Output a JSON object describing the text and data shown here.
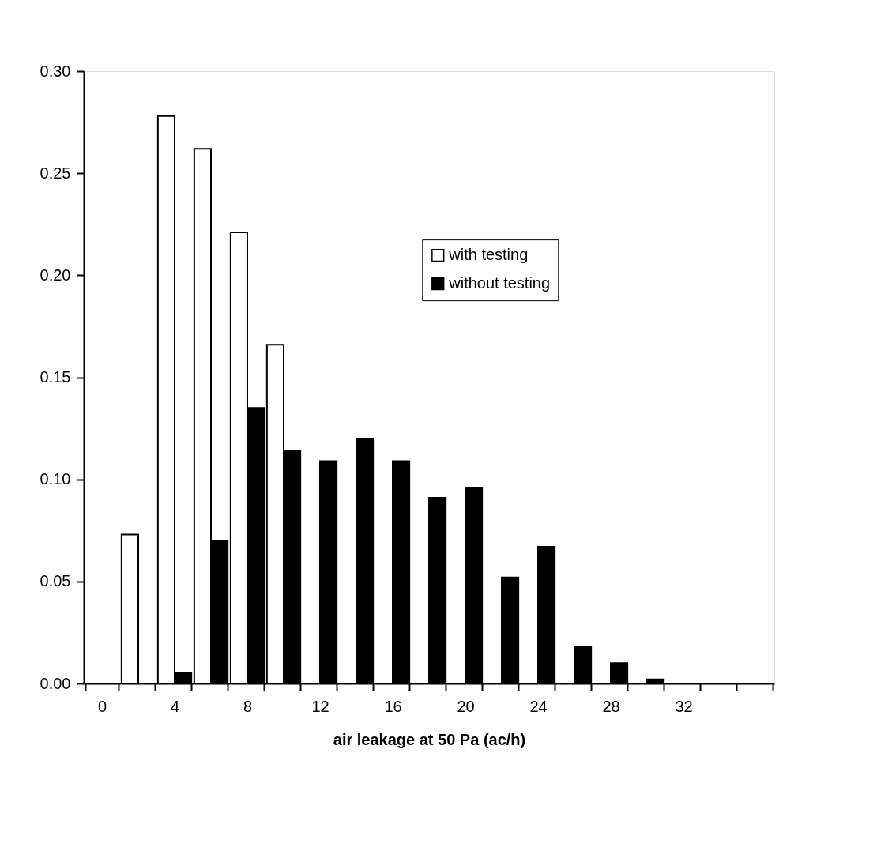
{
  "chart_data": {
    "type": "bar",
    "xlabel": "air leakage at 50 Pa (ac/h)",
    "categories": [
      "0",
      null,
      "4",
      null,
      "8",
      null,
      "12",
      null,
      "16",
      null,
      "20",
      null,
      "24",
      null,
      "28",
      null,
      "32",
      null,
      null
    ],
    "series": [
      {
        "name": "with testing",
        "color": "#ffffff",
        "values": [
          null,
          0.073,
          0.278,
          0.262,
          0.221,
          0.166,
          null,
          null,
          null,
          null,
          null,
          null,
          null,
          null,
          null,
          null,
          null,
          null,
          null
        ]
      },
      {
        "name": "without testing",
        "color": "#000000",
        "values": [
          null,
          null,
          0.005,
          0.07,
          0.135,
          0.114,
          0.109,
          0.12,
          0.109,
          0.091,
          0.096,
          0.052,
          0.067,
          0.018,
          0.01,
          0.002,
          null,
          null,
          null
        ]
      }
    ],
    "ylim": [
      0,
      0.3
    ],
    "yticks": [
      {
        "value": 0,
        "label": "0.00"
      },
      {
        "value": 0.05,
        "label": "0.05"
      },
      {
        "value": 0.1,
        "label": "0.10"
      },
      {
        "value": 0.15,
        "label": "0.15"
      },
      {
        "value": 0.2,
        "label": "0.20"
      },
      {
        "value": 0.25,
        "label": "0.25"
      },
      {
        "value": 0.3,
        "label": "0.30"
      }
    ],
    "grid": false,
    "legend": "right"
  }
}
